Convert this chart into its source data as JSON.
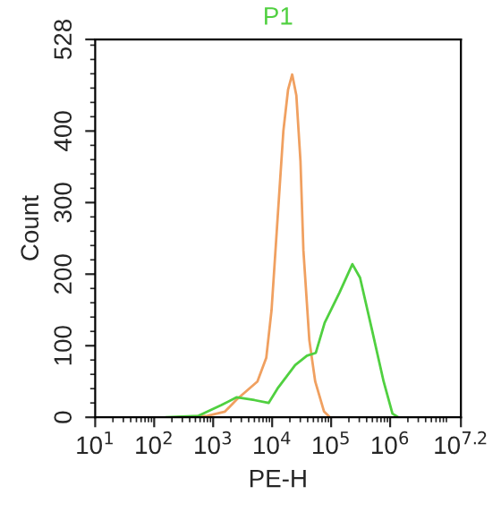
{
  "chart_data": {
    "type": "line",
    "xlabel": "PE-H",
    "ylabel": "Count",
    "log": "x",
    "series": [
      {
        "color": "#f0a060",
        "x": [
          251,
          794,
          1585,
          2512,
          5623,
          7943,
          9772,
          12300,
          15490,
          18620,
          21880,
          25700,
          30200,
          33880,
          42660,
          53700,
          75860,
          95500
        ],
        "values": [
          0,
          2,
          8,
          25,
          50,
          83,
          150,
          275,
          400,
          458,
          479,
          450,
          358,
          233,
          108,
          50,
          8,
          0
        ]
      },
      {
        "name": "P1",
        "color": "#50d040",
        "x": [
          158,
          562,
          1380,
          2512,
          5012,
          8710,
          12300,
          24550,
          38900,
          54950,
          77620,
          138000,
          229000,
          309000,
          490000,
          776000,
          1096000,
          1380000
        ],
        "values": [
          0,
          2,
          17,
          28,
          24,
          20,
          40,
          73,
          86,
          90,
          132,
          174,
          214,
          195,
          123,
          50,
          5,
          0
        ]
      }
    ],
    "xlim": [
      10,
      15848932
    ],
    "ylim": [
      0,
      528
    ],
    "xticks": [
      {
        "value": 10,
        "label": "10$^{1}$"
      },
      {
        "value": 100,
        "label": "10$^{2}$"
      },
      {
        "value": 1000,
        "label": "10$^{3}$"
      },
      {
        "value": 10000,
        "label": "10$^{4}$"
      },
      {
        "value": 100000,
        "label": "10$^{5}$"
      },
      {
        "value": 1000000,
        "label": "10$^{6}$"
      },
      {
        "value": 15848932,
        "label": "10$^{7.2}$"
      }
    ],
    "yticks": [
      0,
      100,
      200,
      300,
      400,
      528
    ],
    "grid": false,
    "legend": false,
    "line_style": "solid",
    "marker": "none"
  }
}
